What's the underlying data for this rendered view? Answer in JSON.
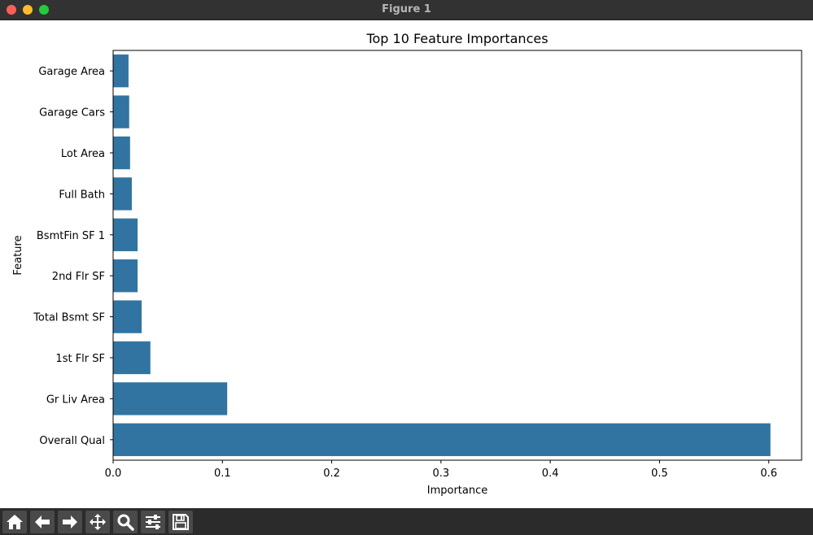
{
  "window": {
    "title": "Figure 1"
  },
  "toolbar": {
    "buttons": [
      {
        "name": "home-icon"
      },
      {
        "name": "back-arrow-icon"
      },
      {
        "name": "forward-arrow-icon"
      },
      {
        "name": "pan-move-icon"
      },
      {
        "name": "zoom-magnifier-icon"
      },
      {
        "name": "configure-subplots-icon"
      },
      {
        "name": "save-figure-icon"
      }
    ]
  },
  "chart_data": {
    "type": "bar",
    "orientation": "horizontal",
    "title": "Top 10 Feature Importances",
    "xlabel": "Importance",
    "ylabel": "Feature",
    "categories": [
      "Garage Area",
      "Garage Cars",
      "Lot Area",
      "Full Bath",
      "BsmtFin SF 1",
      "2nd Flr SF",
      "Total Bsmt SF",
      "1st Flr SF",
      "Gr Liv Area",
      "Overall Qual"
    ],
    "values": [
      0.0141,
      0.0147,
      0.0155,
      0.0171,
      0.0224,
      0.0224,
      0.0261,
      0.0341,
      0.1044,
      0.6015
    ],
    "xlim": [
      0,
      0.63
    ],
    "xticks": [
      "0.0",
      "0.1",
      "0.2",
      "0.3",
      "0.4",
      "0.5",
      "0.6"
    ],
    "xtick_values": [
      0,
      0.1,
      0.2,
      0.3,
      0.4,
      0.5,
      0.6
    ],
    "bar_color": "#3274a1",
    "grid": false,
    "legend": false
  }
}
